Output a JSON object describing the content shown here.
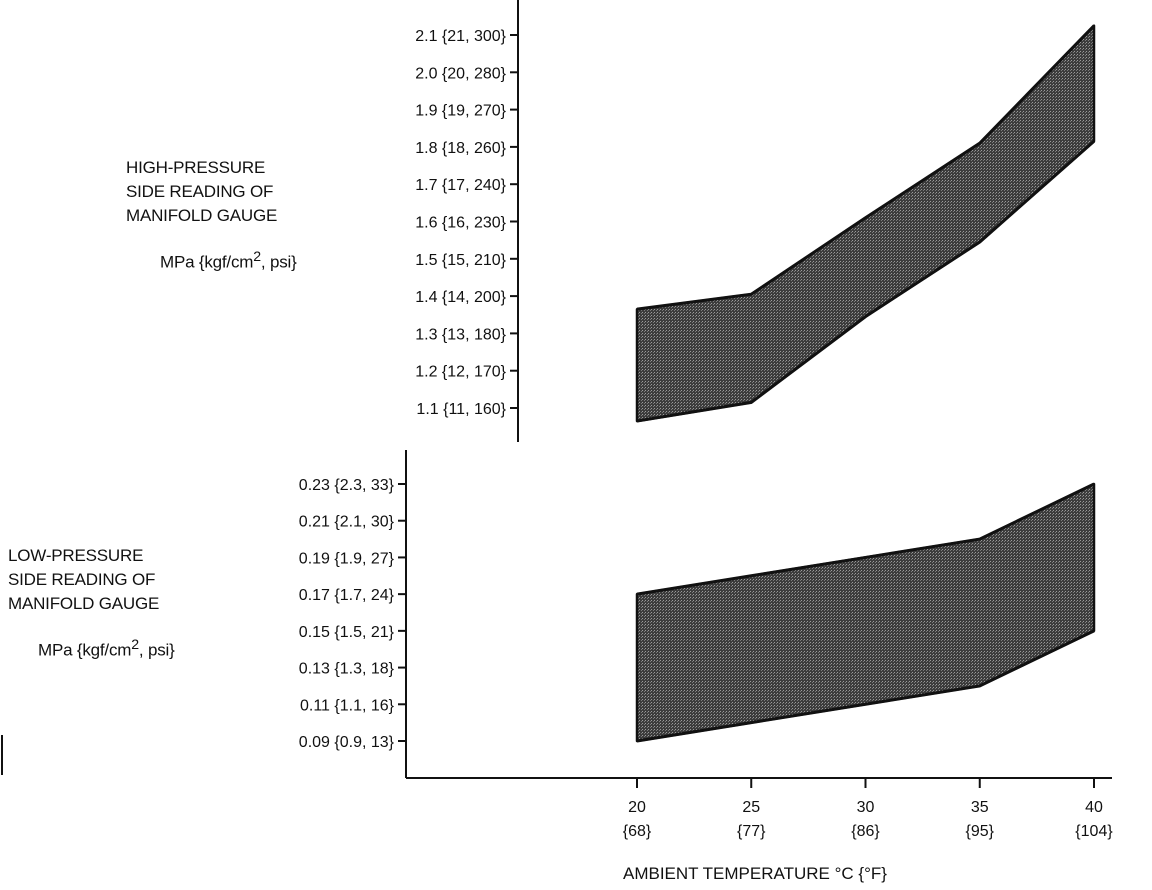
{
  "chart_data": [
    {
      "type": "area",
      "name": "high-pressure",
      "ylabel_lines": [
        "HIGH-PRESSURE",
        "SIDE READING OF",
        "MANIFOLD GAUGE"
      ],
      "yunit": {
        "prefix": "MPa {kgf/cm",
        "sup": "2",
        "suffix": ", psi}"
      },
      "y_ticks": [
        {
          "value": 1.1,
          "label": "1.1 {11, 160}"
        },
        {
          "value": 1.2,
          "label": "1.2 {12, 170}"
        },
        {
          "value": 1.3,
          "label": "1.3 {13, 180}"
        },
        {
          "value": 1.4,
          "label": "1.4 {14, 200}"
        },
        {
          "value": 1.5,
          "label": "1.5 {15, 210}"
        },
        {
          "value": 1.6,
          "label": "1.6 {16, 230}"
        },
        {
          "value": 1.7,
          "label": "1.7 {17, 240}"
        },
        {
          "value": 1.8,
          "label": "1.8 {18, 260}"
        },
        {
          "value": 1.9,
          "label": "1.9 {19, 270}"
        },
        {
          "value": 2.0,
          "label": "2.0 {20, 280}"
        },
        {
          "value": 2.1,
          "label": "2.1 {21, 300}"
        }
      ],
      "ylim": [
        1.065,
        2.135
      ],
      "x": [
        20,
        25,
        30,
        35,
        40
      ],
      "upper": [
        1.365,
        1.405,
        1.61,
        1.81,
        2.125
      ],
      "lower": [
        1.065,
        1.115,
        1.345,
        1.545,
        1.815
      ]
    },
    {
      "type": "area",
      "name": "low-pressure",
      "ylabel_lines": [
        "LOW-PRESSURE",
        "SIDE READING OF",
        "MANIFOLD GAUGE"
      ],
      "yunit": {
        "prefix": "MPa {kgf/cm",
        "sup": "2",
        "suffix": ", psi}"
      },
      "y_ticks": [
        {
          "value": 0.09,
          "label": "0.09 {0.9, 13}"
        },
        {
          "value": 0.11,
          "label": "0.11 {1.1, 16}"
        },
        {
          "value": 0.13,
          "label": "0.13 {1.3, 18}"
        },
        {
          "value": 0.15,
          "label": "0.15 {1.5, 21}"
        },
        {
          "value": 0.17,
          "label": "0.17 {1.7, 24}"
        },
        {
          "value": 0.19,
          "label": "0.19 {1.9, 27}"
        },
        {
          "value": 0.21,
          "label": "0.21 {2.1, 30}"
        },
        {
          "value": 0.23,
          "label": "0.23 {2.3, 33}"
        }
      ],
      "ylim": [
        0.08,
        0.24
      ],
      "x": [
        20,
        25,
        30,
        35,
        40
      ],
      "upper": [
        0.17,
        0.18,
        0.19,
        0.2,
        0.23
      ],
      "lower": [
        0.09,
        0.1,
        0.11,
        0.12,
        0.15
      ]
    }
  ],
  "x_axis": {
    "label": "AMBIENT TEMPERATURE °C {°F}",
    "ticks": [
      {
        "value": 20,
        "c": "20",
        "f": "{68}"
      },
      {
        "value": 25,
        "c": "25",
        "f": "{77}"
      },
      {
        "value": 30,
        "c": "30",
        "f": "{86}"
      },
      {
        "value": 35,
        "c": "35",
        "f": "{95}"
      },
      {
        "value": 40,
        "c": "40",
        "f": "{104}"
      }
    ]
  },
  "colors": {
    "fill": "#4a4a4a",
    "line": "#111111"
  }
}
